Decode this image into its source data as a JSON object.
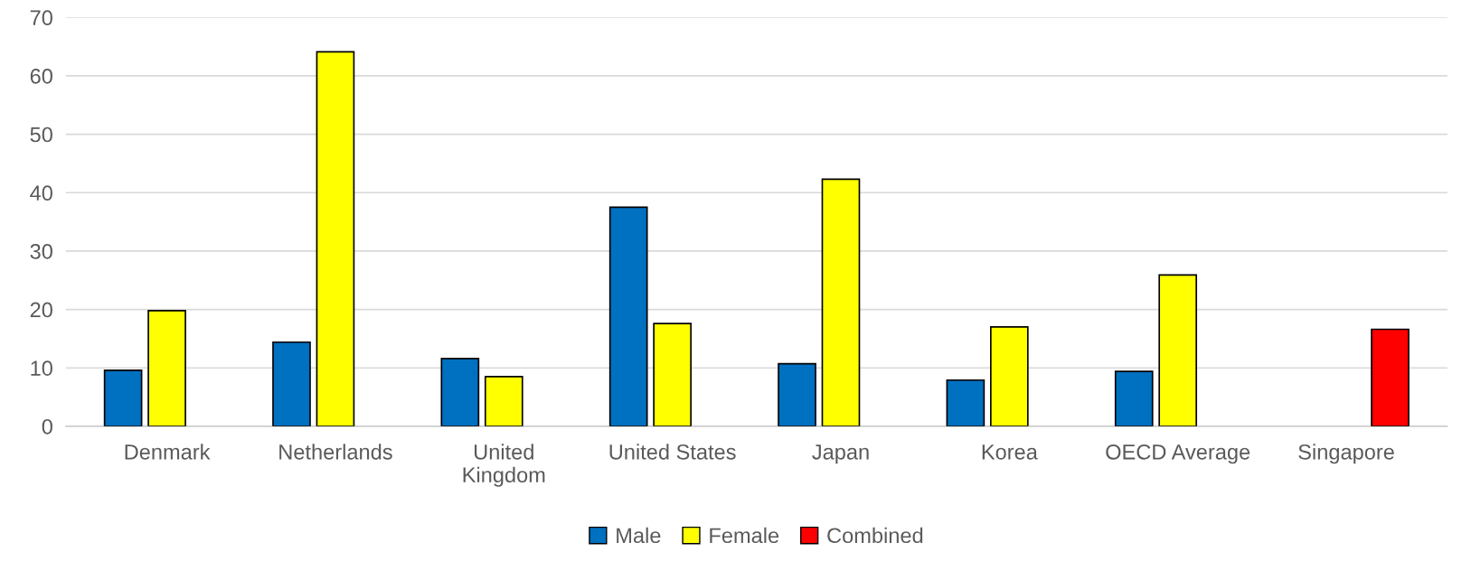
{
  "chart_data": {
    "type": "bar",
    "categories": [
      "Denmark",
      "Netherlands",
      "United\nKingdom",
      "United States",
      "Japan",
      "Korea",
      "OECD Average",
      "Singapore"
    ],
    "series": [
      {
        "name": "Male",
        "color": "#0070c0",
        "values": [
          9.6,
          14.4,
          11.6,
          37.5,
          10.7,
          7.9,
          9.4,
          null
        ]
      },
      {
        "name": "Female",
        "color": "#ffff00",
        "values": [
          19.8,
          64.1,
          8.5,
          17.6,
          42.3,
          17.0,
          25.9,
          null
        ]
      },
      {
        "name": "Combined",
        "color": "#ff0000",
        "values": [
          null,
          null,
          null,
          null,
          null,
          null,
          null,
          16.6
        ]
      }
    ],
    "ylim": [
      0,
      70
    ],
    "yticks": [
      0,
      10,
      20,
      30,
      40,
      50,
      60,
      70
    ],
    "grid": "y",
    "legend": "bottom"
  }
}
